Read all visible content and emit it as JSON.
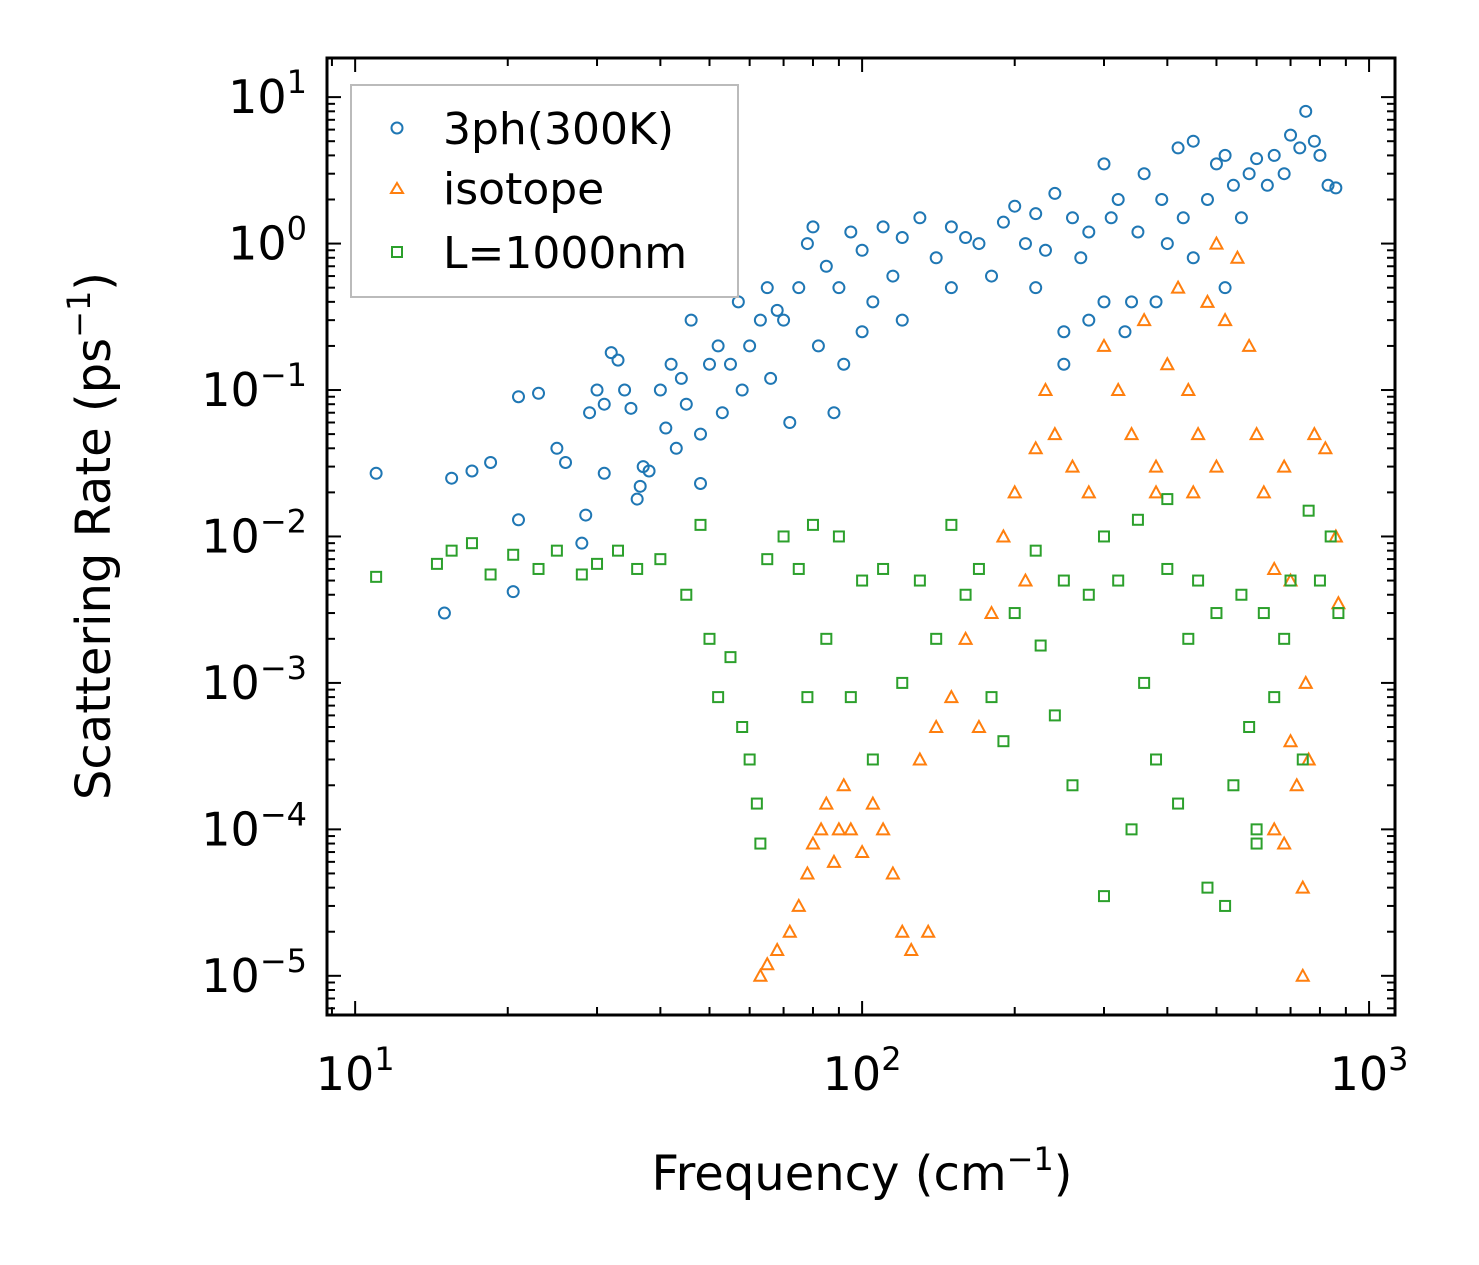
{
  "chart_data": {
    "type": "scatter",
    "xlabel": "Frequency (cm",
    "xlabel_sup": "−1",
    "xlabel_end": ")",
    "ylabel": "Scattering Rate (ps",
    "ylabel_sup": "−1",
    "ylabel_end": ")",
    "xscale": "log",
    "yscale": "log",
    "xlim": [
      8.8,
      1125
    ],
    "ylim": [
      5.4e-06,
      18.5
    ],
    "xticks": [
      {
        "value": 10,
        "base": "10",
        "exp": "1"
      },
      {
        "value": 100,
        "base": "10",
        "exp": "2"
      },
      {
        "value": 1000,
        "base": "10",
        "exp": "3"
      }
    ],
    "yticks": [
      {
        "value": 10,
        "base": "10",
        "exp": "1"
      },
      {
        "value": 1,
        "base": "10",
        "exp": "0"
      },
      {
        "value": 0.1,
        "base": "10",
        "exp": "−1"
      },
      {
        "value": 0.01,
        "base": "10",
        "exp": "−2"
      },
      {
        "value": 0.001,
        "base": "10",
        "exp": "−3"
      },
      {
        "value": 0.0001,
        "base": "10",
        "exp": "−4"
      },
      {
        "value": 1e-05,
        "base": "10",
        "exp": "−5"
      }
    ],
    "legend_position": "top-left",
    "grid": false,
    "series": [
      {
        "name": "3ph(300K)",
        "color": "#1f77b4",
        "marker": "circle",
        "points": [
          [
            11,
            0.027
          ],
          [
            15,
            0.003
          ],
          [
            15.5,
            0.025
          ],
          [
            17,
            0.028
          ],
          [
            18.5,
            0.032
          ],
          [
            20.5,
            0.0042
          ],
          [
            21,
            0.09
          ],
          [
            21,
            0.013
          ],
          [
            23,
            0.095
          ],
          [
            25,
            0.04
          ],
          [
            26,
            0.032
          ],
          [
            28,
            0.009
          ],
          [
            28.5,
            0.014
          ],
          [
            29,
            0.07
          ],
          [
            30,
            0.1
          ],
          [
            31,
            0.027
          ],
          [
            31,
            0.08
          ],
          [
            32,
            0.18
          ],
          [
            33,
            0.16
          ],
          [
            34,
            0.1
          ],
          [
            35,
            0.075
          ],
          [
            36,
            0.018
          ],
          [
            36.5,
            0.022
          ],
          [
            37,
            0.03
          ],
          [
            38,
            0.028
          ],
          [
            40,
            0.1
          ],
          [
            41,
            0.055
          ],
          [
            42,
            0.15
          ],
          [
            43,
            0.04
          ],
          [
            44,
            0.12
          ],
          [
            45,
            0.08
          ],
          [
            46,
            0.3
          ],
          [
            48,
            0.023
          ],
          [
            48,
            0.05
          ],
          [
            50,
            0.15
          ],
          [
            52,
            0.2
          ],
          [
            53,
            0.07
          ],
          [
            55,
            0.15
          ],
          [
            57,
            0.4
          ],
          [
            58,
            0.1
          ],
          [
            60,
            0.2
          ],
          [
            63,
            0.3
          ],
          [
            65,
            0.5
          ],
          [
            66,
            0.12
          ],
          [
            68,
            0.35
          ],
          [
            70,
            0.3
          ],
          [
            72,
            0.06
          ],
          [
            75,
            0.5
          ],
          [
            78,
            1.0
          ],
          [
            80,
            1.3
          ],
          [
            82,
            0.2
          ],
          [
            85,
            0.7
          ],
          [
            88,
            0.07
          ],
          [
            90,
            0.5
          ],
          [
            92,
            0.15
          ],
          [
            95,
            1.2
          ],
          [
            100,
            0.9
          ],
          [
            100,
            0.25
          ],
          [
            105,
            0.4
          ],
          [
            110,
            1.3
          ],
          [
            115,
            0.6
          ],
          [
            120,
            1.1
          ],
          [
            120,
            0.3
          ],
          [
            130,
            1.5
          ],
          [
            140,
            0.8
          ],
          [
            150,
            1.3
          ],
          [
            150,
            0.5
          ],
          [
            160,
            1.1
          ],
          [
            170,
            1.0
          ],
          [
            180,
            0.6
          ],
          [
            190,
            1.4
          ],
          [
            200,
            1.8
          ],
          [
            210,
            1.0
          ],
          [
            220,
            1.6
          ],
          [
            220,
            0.5
          ],
          [
            230,
            0.9
          ],
          [
            240,
            2.2
          ],
          [
            250,
            0.25
          ],
          [
            250,
            0.15
          ],
          [
            260,
            1.5
          ],
          [
            270,
            0.8
          ],
          [
            280,
            1.2
          ],
          [
            280,
            0.3
          ],
          [
            300,
            3.5
          ],
          [
            300,
            0.4
          ],
          [
            310,
            1.5
          ],
          [
            320,
            2.0
          ],
          [
            330,
            0.25
          ],
          [
            340,
            0.4
          ],
          [
            350,
            1.2
          ],
          [
            360,
            3.0
          ],
          [
            380,
            0.4
          ],
          [
            390,
            2.0
          ],
          [
            400,
            1.0
          ],
          [
            420,
            4.5
          ],
          [
            430,
            1.5
          ],
          [
            450,
            5.0
          ],
          [
            450,
            0.8
          ],
          [
            480,
            2.0
          ],
          [
            500,
            3.5
          ],
          [
            520,
            4.0
          ],
          [
            520,
            0.5
          ],
          [
            540,
            2.5
          ],
          [
            560,
            1.5
          ],
          [
            580,
            3.0
          ],
          [
            600,
            3.8
          ],
          [
            630,
            2.5
          ],
          [
            650,
            4.0
          ],
          [
            680,
            3.0
          ],
          [
            700,
            5.5
          ],
          [
            730,
            4.5
          ],
          [
            750,
            8
          ],
          [
            780,
            5
          ],
          [
            800,
            4
          ],
          [
            830,
            2.5
          ],
          [
            860,
            2.4
          ]
        ]
      },
      {
        "name": "isotope",
        "color": "#ff7f0e",
        "marker": "triangle",
        "points": [
          [
            63,
            1e-05
          ],
          [
            65,
            1.2e-05
          ],
          [
            68,
            1.5e-05
          ],
          [
            72,
            2e-05
          ],
          [
            75,
            3e-05
          ],
          [
            78,
            5e-05
          ],
          [
            80,
            8e-05
          ],
          [
            83,
            0.0001
          ],
          [
            85,
            0.00015
          ],
          [
            88,
            6e-05
          ],
          [
            90,
            0.0001
          ],
          [
            92,
            0.0002
          ],
          [
            95,
            0.0001
          ],
          [
            100,
            7e-05
          ],
          [
            105,
            0.00015
          ],
          [
            110,
            0.0001
          ],
          [
            115,
            5e-05
          ],
          [
            120,
            2e-05
          ],
          [
            125,
            1.5e-05
          ],
          [
            130,
            0.0003
          ],
          [
            135,
            2e-05
          ],
          [
            140,
            0.0005
          ],
          [
            150,
            0.0008
          ],
          [
            160,
            0.002
          ],
          [
            170,
            0.0005
          ],
          [
            180,
            0.003
          ],
          [
            190,
            0.01
          ],
          [
            200,
            0.02
          ],
          [
            210,
            0.005
          ],
          [
            220,
            0.04
          ],
          [
            230,
            0.1
          ],
          [
            240,
            0.05
          ],
          [
            260,
            0.03
          ],
          [
            280,
            0.02
          ],
          [
            300,
            0.2
          ],
          [
            320,
            0.1
          ],
          [
            340,
            0.05
          ],
          [
            360,
            0.3
          ],
          [
            380,
            0.02
          ],
          [
            380,
            0.03
          ],
          [
            400,
            0.15
          ],
          [
            420,
            0.5
          ],
          [
            440,
            0.1
          ],
          [
            450,
            0.02
          ],
          [
            460,
            0.05
          ],
          [
            480,
            0.4
          ],
          [
            500,
            1.0
          ],
          [
            500,
            0.03
          ],
          [
            520,
            0.3
          ],
          [
            550,
            0.8
          ],
          [
            580,
            0.2
          ],
          [
            600,
            0.05
          ],
          [
            620,
            0.02
          ],
          [
            650,
            0.006
          ],
          [
            650,
            0.0001
          ],
          [
            680,
            0.03
          ],
          [
            680,
            8e-05
          ],
          [
            700,
            0.005
          ],
          [
            700,
            0.0004
          ],
          [
            720,
            0.0002
          ],
          [
            740,
            4e-05
          ],
          [
            740,
            1e-05
          ],
          [
            750,
            0.001
          ],
          [
            760,
            0.0003
          ],
          [
            780,
            0.05
          ],
          [
            820,
            0.04
          ],
          [
            860,
            0.01
          ],
          [
            870,
            0.0035
          ]
        ]
      },
      {
        "name": "L=1000nm",
        "color": "#2ca02c",
        "marker": "square",
        "points": [
          [
            11,
            0.0053
          ],
          [
            14.5,
            0.0065
          ],
          [
            15.5,
            0.008
          ],
          [
            17,
            0.009
          ],
          [
            18.5,
            0.0055
          ],
          [
            20.5,
            0.0075
          ],
          [
            23,
            0.006
          ],
          [
            25,
            0.008
          ],
          [
            28,
            0.0055
          ],
          [
            30,
            0.0065
          ],
          [
            33,
            0.008
          ],
          [
            36,
            0.006
          ],
          [
            40,
            0.007
          ],
          [
            45,
            0.004
          ],
          [
            48,
            0.012
          ],
          [
            50,
            0.002
          ],
          [
            52,
            0.0008
          ],
          [
            55,
            0.0015
          ],
          [
            58,
            0.0005
          ],
          [
            60,
            0.0003
          ],
          [
            62,
            0.00015
          ],
          [
            63,
            8e-05
          ],
          [
            65,
            0.007
          ],
          [
            70,
            0.01
          ],
          [
            75,
            0.006
          ],
          [
            78,
            0.0008
          ],
          [
            80,
            0.012
          ],
          [
            85,
            0.002
          ],
          [
            90,
            0.01
          ],
          [
            95,
            0.0008
          ],
          [
            100,
            0.005
          ],
          [
            105,
            0.0003
          ],
          [
            110,
            0.006
          ],
          [
            120,
            0.001
          ],
          [
            130,
            0.005
          ],
          [
            140,
            0.002
          ],
          [
            150,
            0.012
          ],
          [
            160,
            0.004
          ],
          [
            170,
            0.006
          ],
          [
            180,
            0.0008
          ],
          [
            190,
            0.0004
          ],
          [
            200,
            0.003
          ],
          [
            220,
            0.008
          ],
          [
            225,
            0.0018
          ],
          [
            240,
            0.0006
          ],
          [
            250,
            0.005
          ],
          [
            260,
            0.0002
          ],
          [
            280,
            0.004
          ],
          [
            300,
            3.5e-05
          ],
          [
            300,
            0.01
          ],
          [
            320,
            0.005
          ],
          [
            340,
            0.0001
          ],
          [
            350,
            0.013
          ],
          [
            360,
            0.001
          ],
          [
            380,
            0.0003
          ],
          [
            400,
            0.006
          ],
          [
            400,
            0.018
          ],
          [
            420,
            0.00015
          ],
          [
            440,
            0.002
          ],
          [
            460,
            0.005
          ],
          [
            480,
            4e-05
          ],
          [
            500,
            0.003
          ],
          [
            520,
            3e-05
          ],
          [
            540,
            0.0002
          ],
          [
            560,
            0.004
          ],
          [
            580,
            0.0005
          ],
          [
            600,
            8e-05
          ],
          [
            600,
            0.0001
          ],
          [
            620,
            0.003
          ],
          [
            650,
            0.0008
          ],
          [
            680,
            0.002
          ],
          [
            700,
            0.005
          ],
          [
            740,
            0.0003
          ],
          [
            760,
            0.015
          ],
          [
            800,
            0.005
          ],
          [
            840,
            0.01
          ],
          [
            870,
            0.003
          ]
        ]
      }
    ]
  }
}
